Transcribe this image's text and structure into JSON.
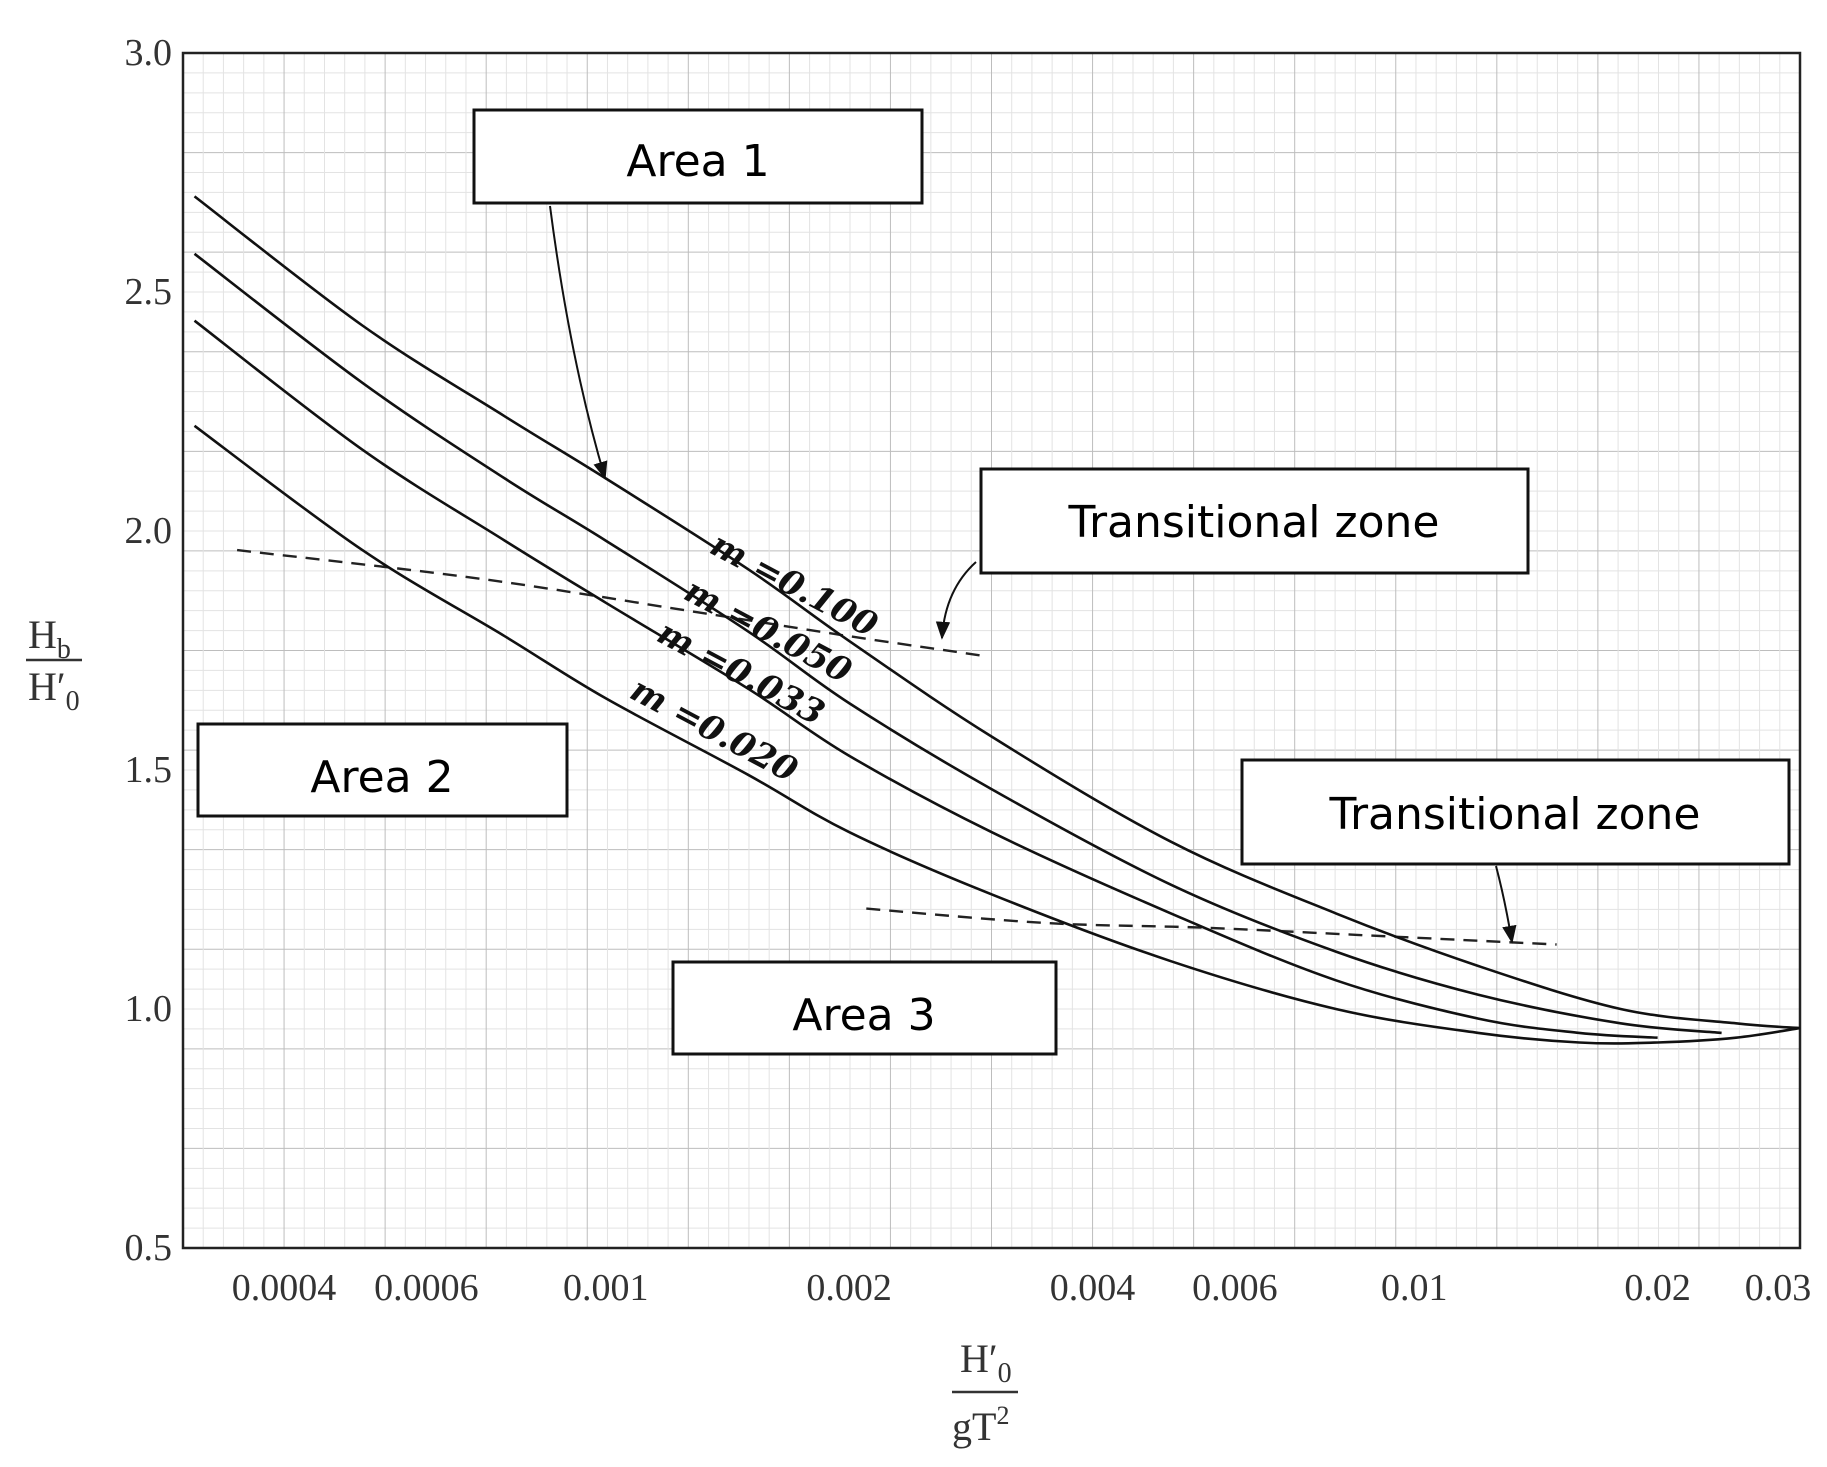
{
  "chart_data": {
    "type": "line",
    "x_scale": "log",
    "xlim": [
      0.0003,
      0.03
    ],
    "ylim": [
      0.5,
      3.0
    ],
    "grid": true,
    "yticks": [
      "3.0",
      "2.5",
      "2.0",
      "1.5",
      "1.0",
      "0.5"
    ],
    "ytick_values": [
      3.0,
      2.5,
      2.0,
      1.5,
      1.0,
      0.5
    ],
    "xticks": [
      "0.0004",
      "0.0006",
      "0.001",
      "0.002",
      "0.004",
      "0.006",
      "0.01",
      "0.02",
      "0.03"
    ],
    "xtick_values": [
      0.0004,
      0.0006,
      0.001,
      0.002,
      0.004,
      0.006,
      0.01,
      0.02,
      0.03
    ],
    "ylabel": {
      "num": "H",
      "num_sub": "b",
      "den": "H′",
      "den_sub": "0"
    },
    "xlabel": {
      "num": "H′",
      "num_sub": "0",
      "den": "gT",
      "den_sup": "2"
    },
    "series": [
      {
        "name": "m =0.100",
        "x": [
          0.00031,
          0.0005,
          0.00075,
          0.001,
          0.0015,
          0.002,
          0.003,
          0.005,
          0.008,
          0.012,
          0.018,
          0.025,
          0.03
        ],
        "y": [
          2.7,
          2.43,
          2.24,
          2.11,
          1.92,
          1.77,
          1.57,
          1.35,
          1.2,
          1.09,
          1.0,
          0.97,
          0.96
        ]
      },
      {
        "name": "m =0.050",
        "x": [
          0.00031,
          0.0005,
          0.00075,
          0.001,
          0.0015,
          0.002,
          0.003,
          0.005,
          0.008,
          0.012,
          0.018,
          0.024
        ],
        "y": [
          2.58,
          2.31,
          2.11,
          1.98,
          1.79,
          1.64,
          1.46,
          1.26,
          1.12,
          1.03,
          0.97,
          0.95
        ]
      },
      {
        "name": "m =0.033",
        "x": [
          0.00031,
          0.0005,
          0.00075,
          0.001,
          0.0015,
          0.002,
          0.003,
          0.005,
          0.008,
          0.012,
          0.016,
          0.02
        ],
        "y": [
          2.44,
          2.17,
          1.98,
          1.85,
          1.67,
          1.53,
          1.37,
          1.2,
          1.06,
          0.98,
          0.95,
          0.94
        ]
      },
      {
        "name": "m =0.020",
        "x": [
          0.00031,
          0.0005,
          0.00075,
          0.001,
          0.0015,
          0.002,
          0.003,
          0.005,
          0.008,
          0.012,
          0.016,
          0.02,
          0.025,
          0.03
        ],
        "y": [
          2.22,
          1.96,
          1.78,
          1.65,
          1.49,
          1.37,
          1.24,
          1.1,
          1.0,
          0.95,
          0.93,
          0.93,
          0.94,
          0.96
        ]
      }
    ],
    "limit_lines": [
      {
        "x": [
          0.00035,
          0.0007,
          0.0013,
          0.002,
          0.0029
        ],
        "y": [
          1.96,
          1.9,
          1.83,
          1.78,
          1.74
        ]
      },
      {
        "x": [
          0.0021,
          0.0035,
          0.0055,
          0.0085,
          0.013,
          0.015
        ],
        "y": [
          1.21,
          1.18,
          1.17,
          1.155,
          1.14,
          1.135
        ]
      }
    ],
    "annotations": [
      {
        "label": "Area 1"
      },
      {
        "label": "Transitional zone"
      },
      {
        "label": "Area 2"
      },
      {
        "label": "Transitional zone"
      },
      {
        "label": "Area 3"
      }
    ]
  }
}
